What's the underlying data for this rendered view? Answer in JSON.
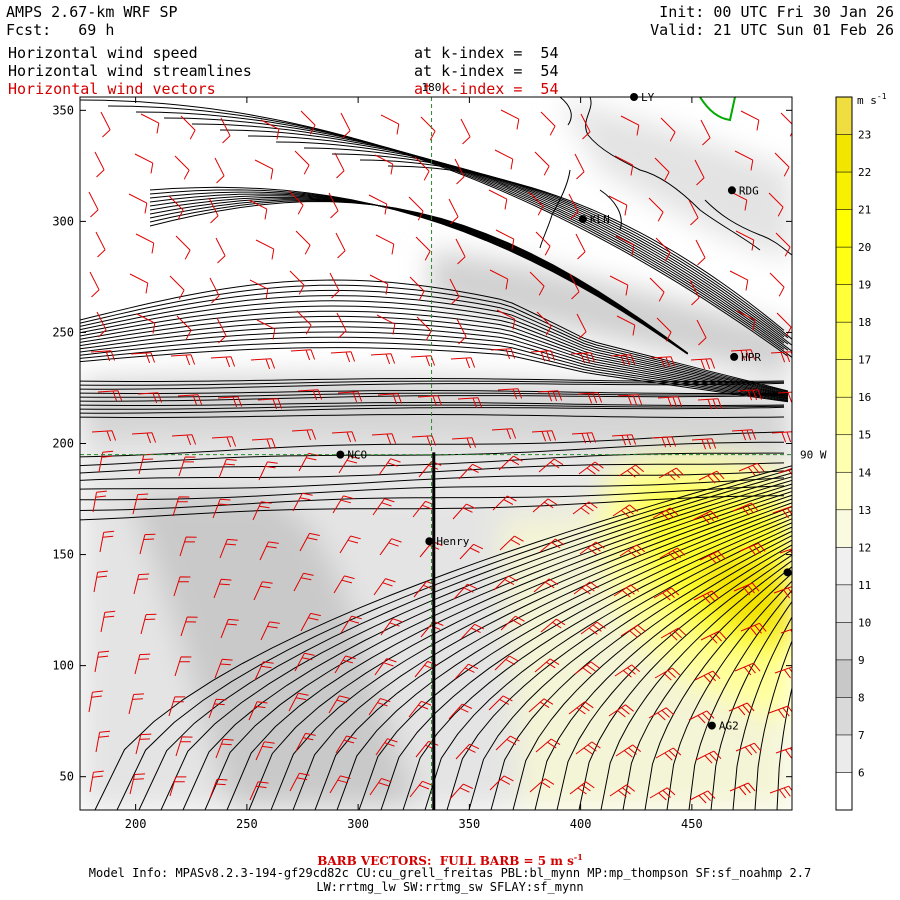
{
  "header": {
    "model": "AMPS 2.67-km WRF SP",
    "forecast": "Fcst:   69 h",
    "init": "Init: 00 UTC Fri 30 Jan 26",
    "valid": "Valid: 21 UTC Sun 01 Feb 26",
    "fields": [
      {
        "name": "Horizontal wind speed",
        "level": "at k-index =  54",
        "color": "#000000"
      },
      {
        "name": "Horizontal wind streamlines",
        "level": "at k-index =  54",
        "color": "#000000"
      },
      {
        "name": "Horizontal wind vectors",
        "level": "at k-index =  54",
        "color": "#d40000"
      }
    ]
  },
  "chart_data": {
    "type": "heatmap",
    "x_ticks": [
      200,
      250,
      300,
      350,
      400,
      450
    ],
    "y_ticks": [
      50,
      100,
      150,
      200,
      250,
      300,
      350
    ],
    "xlim": [
      175,
      495
    ],
    "ylim": [
      35,
      356
    ],
    "colorbar": {
      "unit": "m s",
      "unit_exp": "-1",
      "levels": [
        6,
        7,
        8,
        9,
        10,
        11,
        12,
        13,
        14,
        15,
        16,
        17,
        18,
        19,
        20,
        21,
        22,
        23
      ],
      "colors": [
        "#ffffff",
        "#ebebeb",
        "#d9d9d9",
        "#c8c8c8",
        "#dcdcdc",
        "#e6e6e6",
        "#f0f0f0",
        "#fafae0",
        "#ffffc8",
        "#ffffb0",
        "#ffff96",
        "#ffff7a",
        "#ffff5a",
        "#ffff3a",
        "#ffff14",
        "#ffff00",
        "#f7f000",
        "#f2e600",
        "#f0dd40"
      ]
    },
    "reference_lines": [
      {
        "label": "180",
        "x": 333
      },
      {
        "label": "90 W",
        "y": 195
      }
    ],
    "section_line": {
      "x": 334,
      "y_from": 35,
      "y_to": 196
    },
    "stations": [
      {
        "label": "LY",
        "x": 424,
        "y": 356
      },
      {
        "label": "RDG",
        "x": 468,
        "y": 314
      },
      {
        "label": "KLN",
        "x": 401,
        "y": 301
      },
      {
        "label": "HPR",
        "x": 469,
        "y": 239
      },
      {
        "label": "NCO",
        "x": 292,
        "y": 195
      },
      {
        "label": "Henry",
        "x": 332,
        "y": 156
      },
      {
        "label": "AG2",
        "x": 459,
        "y": 73
      },
      {
        "label": "",
        "x": 493,
        "y": 142
      }
    ]
  },
  "footer": {
    "barb": "BARB VECTORS:  FULL BARB = 5 m s",
    "barb_exp": "-1",
    "info_line1": "Model Info: MPASv8.2.3-194-gf29cd82c CU:cu_grell_freitas PBL:bl_mynn MP:mp_thompson SF:sf_noahmp 2.7",
    "info_line2": "LW:rrtmg_lw SW:rrtmg_sw SFLAY:sf_mynn"
  }
}
